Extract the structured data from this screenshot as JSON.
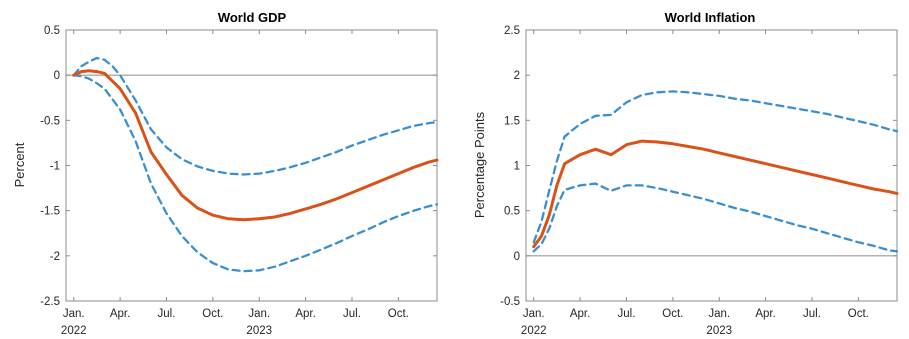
{
  "chart_data": [
    {
      "type": "line",
      "title": "World GDP",
      "ylabel": "Percent",
      "ylim": [
        -2.5,
        0.5
      ],
      "yticks": [
        "0.5",
        "0",
        "-0.5",
        "-1",
        "-1.5",
        "-2",
        "-2.5"
      ],
      "x_ticks": [
        {
          "label": "Jan.",
          "year": "2022",
          "month": 0
        },
        {
          "label": "Apr.",
          "year": "",
          "month": 3
        },
        {
          "label": "Jul.",
          "year": "",
          "month": 6
        },
        {
          "label": "Oct.",
          "year": "",
          "month": 9
        },
        {
          "label": "Jan.",
          "year": "2023",
          "month": 12
        },
        {
          "label": "Apr.",
          "year": "",
          "month": 15
        },
        {
          "label": "Jul.",
          "year": "",
          "month": 18
        },
        {
          "label": "Oct.",
          "year": "",
          "month": 21
        }
      ],
      "xlim": [
        -0.5,
        23.5
      ],
      "series": [
        {
          "role": "central",
          "color": "#d95319",
          "points": [
            [
              0,
              0
            ],
            [
              0.5,
              0.04
            ],
            [
              1,
              0.05
            ],
            [
              1.5,
              0.04
            ],
            [
              2,
              0.02
            ],
            [
              3,
              -0.15
            ],
            [
              4,
              -0.42
            ],
            [
              5,
              -0.85
            ],
            [
              6,
              -1.1
            ],
            [
              7,
              -1.33
            ],
            [
              8,
              -1.47
            ],
            [
              9,
              -1.55
            ],
            [
              10,
              -1.59
            ],
            [
              11,
              -1.6
            ],
            [
              12,
              -1.59
            ],
            [
              13,
              -1.57
            ],
            [
              14,
              -1.53
            ],
            [
              15,
              -1.48
            ],
            [
              16,
              -1.43
            ],
            [
              17,
              -1.37
            ],
            [
              18,
              -1.3
            ],
            [
              19,
              -1.23
            ],
            [
              20,
              -1.16
            ],
            [
              21,
              -1.09
            ],
            [
              22,
              -1.02
            ],
            [
              23,
              -0.96
            ],
            [
              23.5,
              -0.94
            ]
          ]
        },
        {
          "role": "upper",
          "color": "#3a8fd1",
          "points": [
            [
              0,
              0
            ],
            [
              0.5,
              0.1
            ],
            [
              1,
              0.15
            ],
            [
              1.5,
              0.19
            ],
            [
              2,
              0.17
            ],
            [
              2.5,
              0.1
            ],
            [
              3,
              0
            ],
            [
              4,
              -0.28
            ],
            [
              5,
              -0.6
            ],
            [
              6,
              -0.8
            ],
            [
              7,
              -0.93
            ],
            [
              8,
              -1.01
            ],
            [
              9,
              -1.06
            ],
            [
              10,
              -1.09
            ],
            [
              11,
              -1.1
            ],
            [
              12,
              -1.09
            ],
            [
              13,
              -1.06
            ],
            [
              14,
              -1.02
            ],
            [
              15,
              -0.97
            ],
            [
              16,
              -0.91
            ],
            [
              17,
              -0.85
            ],
            [
              18,
              -0.78
            ],
            [
              19,
              -0.72
            ],
            [
              20,
              -0.66
            ],
            [
              21,
              -0.61
            ],
            [
              22,
              -0.56
            ],
            [
              23,
              -0.53
            ],
            [
              23.5,
              -0.52
            ]
          ]
        },
        {
          "role": "lower",
          "color": "#3a8fd1",
          "points": [
            [
              0,
              0
            ],
            [
              0.5,
              -0.01
            ],
            [
              1,
              -0.04
            ],
            [
              1.5,
              -0.09
            ],
            [
              2,
              -0.15
            ],
            [
              3,
              -0.38
            ],
            [
              4,
              -0.73
            ],
            [
              5,
              -1.2
            ],
            [
              6,
              -1.53
            ],
            [
              7,
              -1.78
            ],
            [
              8,
              -1.96
            ],
            [
              9,
              -2.08
            ],
            [
              10,
              -2.15
            ],
            [
              11,
              -2.17
            ],
            [
              12,
              -2.16
            ],
            [
              13,
              -2.12
            ],
            [
              14,
              -2.06
            ],
            [
              15,
              -2.0
            ],
            [
              16,
              -1.93
            ],
            [
              17,
              -1.86
            ],
            [
              18,
              -1.78
            ],
            [
              19,
              -1.71
            ],
            [
              20,
              -1.63
            ],
            [
              21,
              -1.56
            ],
            [
              22,
              -1.5
            ],
            [
              23,
              -1.45
            ],
            [
              23.5,
              -1.43
            ]
          ]
        }
      ]
    },
    {
      "type": "line",
      "title": "World Inflation",
      "ylabel": "Percentage Points",
      "ylim": [
        -0.5,
        2.5
      ],
      "yticks": [
        "2.5",
        "2",
        "1.5",
        "1",
        "0.5",
        "0",
        "-0.5"
      ],
      "x_ticks": [
        {
          "label": "Jan.",
          "year": "2022",
          "month": 0
        },
        {
          "label": "Apr.",
          "year": "",
          "month": 3
        },
        {
          "label": "Jul.",
          "year": "",
          "month": 6
        },
        {
          "label": "Oct.",
          "year": "",
          "month": 9
        },
        {
          "label": "Jan.",
          "year": "2023",
          "month": 12
        },
        {
          "label": "Apr.",
          "year": "",
          "month": 15
        },
        {
          "label": "Jul.",
          "year": "",
          "month": 18
        },
        {
          "label": "Oct.",
          "year": "",
          "month": 21
        }
      ],
      "xlim": [
        -0.5,
        23.5
      ],
      "series": [
        {
          "role": "central",
          "color": "#d95319",
          "points": [
            [
              0,
              0.1
            ],
            [
              0.5,
              0.22
            ],
            [
              1,
              0.45
            ],
            [
              1.5,
              0.78
            ],
            [
              2,
              1.02
            ],
            [
              3,
              1.12
            ],
            [
              4,
              1.18
            ],
            [
              5,
              1.12
            ],
            [
              6,
              1.23
            ],
            [
              7,
              1.27
            ],
            [
              8,
              1.26
            ],
            [
              9,
              1.24
            ],
            [
              10,
              1.21
            ],
            [
              11,
              1.18
            ],
            [
              12,
              1.14
            ],
            [
              13,
              1.1
            ],
            [
              14,
              1.06
            ],
            [
              15,
              1.02
            ],
            [
              16,
              0.98
            ],
            [
              17,
              0.94
            ],
            [
              18,
              0.9
            ],
            [
              19,
              0.86
            ],
            [
              20,
              0.82
            ],
            [
              21,
              0.78
            ],
            [
              22,
              0.74
            ],
            [
              23,
              0.71
            ],
            [
              23.5,
              0.69
            ]
          ]
        },
        {
          "role": "upper",
          "color": "#3a8fd1",
          "points": [
            [
              0,
              0.15
            ],
            [
              0.5,
              0.38
            ],
            [
              1,
              0.72
            ],
            [
              1.5,
              1.05
            ],
            [
              2,
              1.32
            ],
            [
              3,
              1.46
            ],
            [
              4,
              1.55
            ],
            [
              5,
              1.56
            ],
            [
              6,
              1.7
            ],
            [
              7,
              1.78
            ],
            [
              8,
              1.81
            ],
            [
              9,
              1.82
            ],
            [
              10,
              1.81
            ],
            [
              11,
              1.79
            ],
            [
              12,
              1.77
            ],
            [
              13,
              1.74
            ],
            [
              14,
              1.72
            ],
            [
              15,
              1.69
            ],
            [
              16,
              1.66
            ],
            [
              17,
              1.63
            ],
            [
              18,
              1.6
            ],
            [
              19,
              1.57
            ],
            [
              20,
              1.53
            ],
            [
              21,
              1.49
            ],
            [
              22,
              1.45
            ],
            [
              23,
              1.4
            ],
            [
              23.5,
              1.38
            ]
          ]
        },
        {
          "role": "lower",
          "color": "#3a8fd1",
          "points": [
            [
              0,
              0.05
            ],
            [
              0.5,
              0.13
            ],
            [
              1,
              0.3
            ],
            [
              1.5,
              0.55
            ],
            [
              2,
              0.73
            ],
            [
              3,
              0.78
            ],
            [
              4,
              0.8
            ],
            [
              5,
              0.72
            ],
            [
              6,
              0.78
            ],
            [
              7,
              0.78
            ],
            [
              8,
              0.75
            ],
            [
              9,
              0.71
            ],
            [
              10,
              0.67
            ],
            [
              11,
              0.63
            ],
            [
              12,
              0.58
            ],
            [
              13,
              0.53
            ],
            [
              14,
              0.49
            ],
            [
              15,
              0.44
            ],
            [
              16,
              0.39
            ],
            [
              17,
              0.34
            ],
            [
              18,
              0.3
            ],
            [
              19,
              0.25
            ],
            [
              20,
              0.2
            ],
            [
              21,
              0.15
            ],
            [
              22,
              0.11
            ],
            [
              23,
              0.06
            ],
            [
              23.5,
              0.05
            ]
          ]
        }
      ]
    }
  ]
}
